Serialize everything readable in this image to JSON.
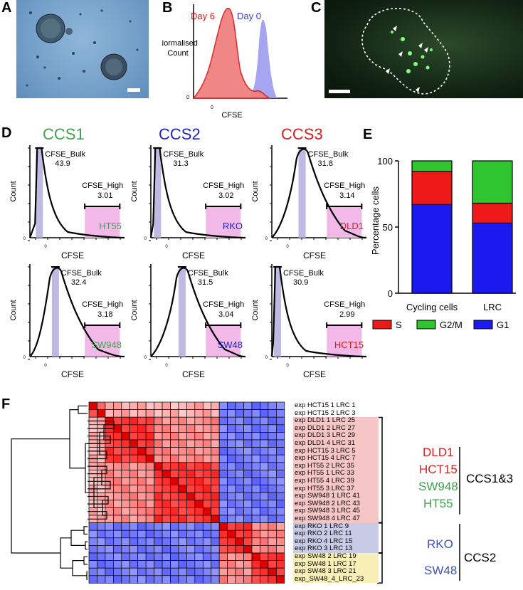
{
  "panels": {
    "a": "A",
    "b": "B",
    "c": "C",
    "d": "D",
    "e": "E",
    "f": "F"
  },
  "panel_b": {
    "label_day6": "Day 6",
    "label_day0": "Day 0",
    "ylabel": "Normalised Count",
    "ylabel_line1": "Normalised",
    "ylabel_line2": "Count",
    "xlabel": "CFSE",
    "ytick": "0",
    "xtick": "0",
    "colors": {
      "day6": "#f08080",
      "day0": "#9b9bef"
    }
  },
  "panel_d": {
    "groups": [
      {
        "name": "CCS1",
        "color": "#3fa34d"
      },
      {
        "name": "CCS2",
        "color": "#1d23c8"
      },
      {
        "name": "CCS3",
        "color": "#d81e1e"
      }
    ],
    "histograms": [
      {
        "line": "HT55",
        "line_color": "#3fa34d",
        "bulk_label": "CFSE_Bulk",
        "bulk": "43.9",
        "high_label": "CFSE_High",
        "high": "3.01",
        "ylabel": "Count",
        "xlabel": "CFSE",
        "zero": "0"
      },
      {
        "line": "RKO",
        "line_color": "#1d23c8",
        "bulk_label": "CFSE_Bulk",
        "bulk": "31.3",
        "high_label": "CFSE_High",
        "high": "3.02",
        "ylabel": "Count",
        "xlabel": "CFSE",
        "zero": "0"
      },
      {
        "line": "DLD1",
        "line_color": "#d81e1e",
        "bulk_label": "CFSE_Bulk",
        "bulk": "31.8",
        "high_label": "CFSE_High",
        "high": "3.14",
        "ylabel": "Count",
        "xlabel": "CFSE",
        "zero": "0"
      },
      {
        "line": "SW948",
        "line_color": "#3fa34d",
        "bulk_label": "CFSE_Bulk",
        "bulk": "32.4",
        "high_label": "CFSE_High",
        "high": "3.18",
        "ylabel": "Count",
        "xlabel": "CFSE",
        "zero": "0"
      },
      {
        "line": "SW48",
        "line_color": "#1d23c8",
        "bulk_label": "CFSE_Bulk",
        "bulk": "31.5",
        "high_label": "CFSE_High",
        "high": "3.04",
        "ylabel": "Count",
        "xlabel": "CFSE",
        "zero": "0"
      },
      {
        "line": "HCT15",
        "line_color": "#d81e1e",
        "bulk_label": "CFSE_Bulk",
        "bulk": "30.9",
        "high_label": "CFSE_High",
        "high": "2.99",
        "ylabel": "Count",
        "xlabel": "CFSE",
        "zero": "0"
      }
    ]
  },
  "chart_data": {
    "type": "bar",
    "stacked": true,
    "title": "",
    "xlabel": "",
    "ylabel": "Percentage cells",
    "ylim": [
      0,
      100
    ],
    "yticks": [
      "0",
      "50",
      "100"
    ],
    "categories": [
      "Cycling cells",
      "LRC"
    ],
    "series": [
      {
        "name": "G1",
        "color": "#1a1aee",
        "values": [
          67,
          53
        ]
      },
      {
        "name": "S",
        "color": "#ee1a1a",
        "values": [
          25,
          15
        ]
      },
      {
        "name": "G2/M",
        "color": "#2ec52e",
        "values": [
          8,
          32
        ]
      }
    ],
    "legend": [
      "S",
      "G2/M",
      "G1"
    ]
  },
  "panel_f": {
    "row_labels": [
      "exp HCT15 1 LRC 1",
      "exp HCT15 2 LRC 3",
      "exp DLD1 1 LRC 25",
      "exp DLD1 2 LRC 27",
      "exp DLD1 3 LRC 29",
      "exp DLD1 4 LRC 31",
      "exp HCT15 3 LRC 5",
      "exp HCT15 4 LRC 7",
      "exp HT55 2 LRC 35",
      "exp HT55 1 LRC 33",
      "exp HT55 4 LRC 39",
      "exp HT55 3 LRC 37",
      "exp SW948 1 LRC 41",
      "exp SW948 2 LRC 43",
      "exp SW948 3 LRC 45",
      "exp SW948 4 LRC 47",
      "exp RKO 1 LRC 9",
      "exp RKO 2 LRC 11",
      "exp RKO 4 LRC 15",
      "exp RKO 3 LRC 13",
      "exp SW48 2 LRC 19",
      "exp SW48 1 LRC 17",
      "exp SW48 3 LRC 21",
      "exp_SW48_4_LRC_23"
    ],
    "groups_ccs13": [
      {
        "name": "DLD1",
        "color": "#d81e1e"
      },
      {
        "name": "HCT15",
        "color": "#d81e1e"
      },
      {
        "name": "SW948",
        "color": "#3fa34d"
      },
      {
        "name": "HT55",
        "color": "#3fa34d"
      }
    ],
    "groups_ccs2": [
      {
        "name": "RKO",
        "color": "#3f55b0"
      },
      {
        "name": "SW48",
        "color": "#3f55b0"
      }
    ],
    "cluster1": "CCS1&3",
    "cluster2": "CCS2",
    "cluster_sizes": [
      2,
      6,
      8,
      4,
      4
    ]
  }
}
